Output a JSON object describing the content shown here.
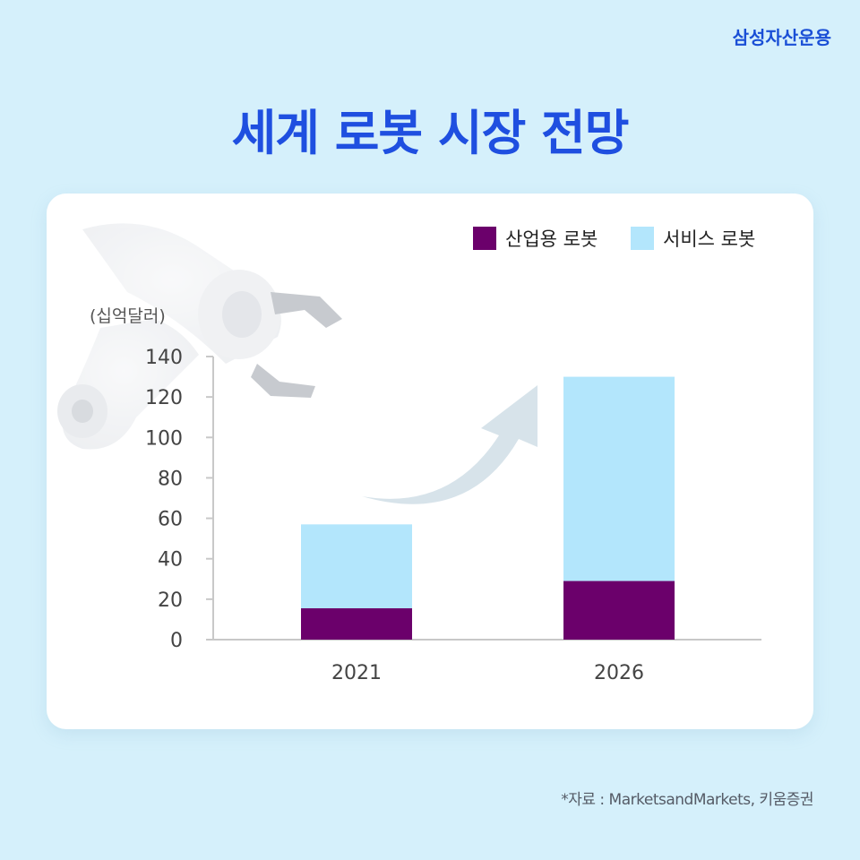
{
  "brand": "삼성자산운용",
  "title": "세계 로봇 시장 전망",
  "source": "*자료 : MarketsandMarkets, 키움증권",
  "colors": {
    "background": "#d5f0fb",
    "title": "#1f4fe0",
    "industrial": "#6b006b",
    "service": "#b3e6fc",
    "axis": "#c8c8c8",
    "arrow": "#d7e3ea"
  },
  "chart_data": {
    "type": "bar",
    "stacked": true,
    "categories": [
      "2021",
      "2026"
    ],
    "series": [
      {
        "name": "산업용 로봇",
        "values": [
          15.5,
          29
        ],
        "color": "#6b006b"
      },
      {
        "name": "서비스 로봇",
        "values": [
          41.5,
          101
        ],
        "color": "#b3e6fc"
      }
    ],
    "ylabel": "(십억달러)",
    "ylim": [
      0,
      140
    ],
    "yticks": [
      0,
      20,
      40,
      60,
      80,
      100,
      120,
      140
    ],
    "legend_position": "top-right",
    "grid": false,
    "annotations": [
      "upward-arrow"
    ],
    "decorations": [
      "robot-arm-image"
    ]
  }
}
